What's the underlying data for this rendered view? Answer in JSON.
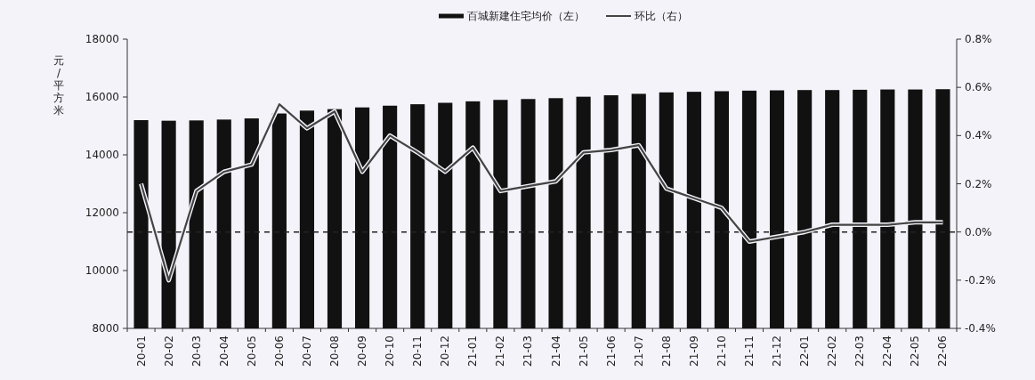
{
  "chart_data": {
    "type": "bar",
    "ylabel": "元/平方米",
    "legend": "top",
    "categories": [
      "20-01",
      "20-02",
      "20-03",
      "20-04",
      "20-05",
      "20-06",
      "20-07",
      "20-08",
      "20-09",
      "20-10",
      "20-11",
      "20-12",
      "21-01",
      "21-02",
      "21-03",
      "21-04",
      "21-05",
      "21-06",
      "21-07",
      "21-08",
      "21-09",
      "21-10",
      "21-11",
      "21-12",
      "22-01",
      "22-02",
      "22-03",
      "22-04",
      "22-05",
      "22-06"
    ],
    "series": [
      {
        "name": "百城新建住宅均价（左）",
        "color": "#111111",
        "values": [
          15200,
          15180,
          15190,
          15220,
          15260,
          15430,
          15530,
          15580,
          15640,
          15700,
          15750,
          15800,
          15850,
          15900,
          15930,
          15960,
          16010,
          16060,
          16110,
          16160,
          16180,
          16200,
          16220,
          16230,
          16240,
          16240,
          16250,
          16260,
          16260,
          16270
        ]
      },
      {
        "name": "环比（右）",
        "type": "line",
        "axis": "y2",
        "color": "#444444",
        "values": [
          0.2,
          -0.2,
          0.17,
          0.25,
          0.28,
          0.53,
          0.43,
          0.5,
          0.25,
          0.4,
          0.33,
          0.25,
          0.35,
          0.17,
          0.19,
          0.21,
          0.33,
          0.34,
          0.36,
          0.18,
          0.14,
          0.1,
          -0.04,
          -0.02,
          0.0,
          0.03,
          0.03,
          0.03,
          0.04,
          0.04
        ]
      }
    ],
    "ylim": [
      8000,
      18000
    ],
    "yticks": [
      8000,
      10000,
      12000,
      14000,
      16000,
      18000
    ],
    "y2lim": [
      -0.4,
      0.8
    ],
    "y2ticks": [
      {
        "value": -0.4,
        "label": "-0.4%"
      },
      {
        "value": -0.2,
        "label": "-0.2%"
      },
      {
        "value": 0,
        "label": "0.0%"
      },
      {
        "value": 0.2,
        "label": "0.2%"
      },
      {
        "value": 0.4,
        "label": "0.4%"
      },
      {
        "value": 0.6,
        "label": "0.6%"
      },
      {
        "value": 0.8,
        "label": "0.8%"
      }
    ],
    "ref_lines": [
      {
        "axis": "y2",
        "value": 0,
        "label": null,
        "color": "#222222",
        "line_style": "dashed"
      }
    ]
  }
}
